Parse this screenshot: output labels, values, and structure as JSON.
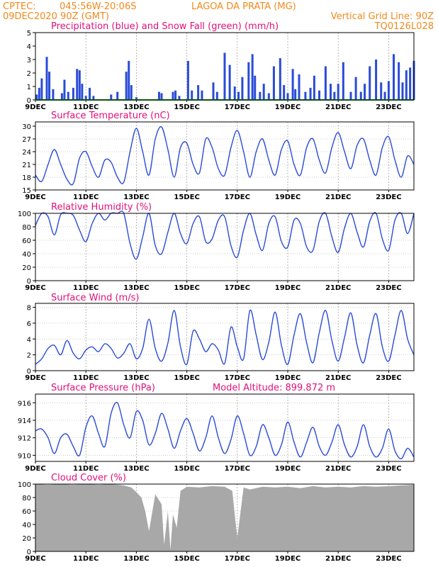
{
  "header": {
    "line1_left": "CPTEC:",
    "line1_coords": "045:56W-20:06S",
    "line1_place": "LAGOA DA PRATA (MG)",
    "line2_left": "09DEC2020 90Z (GMT)",
    "line2_right": "Vertical Grid Line: 90Z",
    "line2_code": "TQ0126L028"
  },
  "colors": {
    "header": "#f08a1c",
    "title": "#e0107a",
    "line": "#2a4bd7",
    "precip": "#2a4bd7",
    "snow": "#22a022",
    "cloud": "#a8a8a8"
  },
  "x_ticks": [
    "9DEC",
    "11DEC",
    "13DEC",
    "15DEC",
    "17DEC",
    "19DEC",
    "21DEC",
    "23DEC"
  ],
  "chart_data": [
    {
      "id": "precip",
      "type": "bar",
      "title": "Precipitation (blue) and Snow Fall (green) (mm/h)",
      "ylim": [
        0,
        5
      ],
      "yticks": [
        0,
        1,
        2,
        3,
        4,
        5
      ],
      "x": [
        9.05,
        9.15,
        9.25,
        9.45,
        9.55,
        9.7,
        10.05,
        10.15,
        10.3,
        10.5,
        10.65,
        10.75,
        10.85,
        11.0,
        11.15,
        11.3,
        12.0,
        12.25,
        12.6,
        12.7,
        12.8,
        13.0,
        13.9,
        14.0,
        14.45,
        14.55,
        14.7,
        15.05,
        15.2,
        15.45,
        15.6,
        16.05,
        16.2,
        16.5,
        16.7,
        16.9,
        17.05,
        17.2,
        17.45,
        17.6,
        17.7,
        17.9,
        18.05,
        18.25,
        18.45,
        18.7,
        18.85,
        19.0,
        19.2,
        19.3,
        19.45,
        19.7,
        19.9,
        20.05,
        20.25,
        20.5,
        20.7,
        20.85,
        21.0,
        21.2,
        21.5,
        21.7,
        21.9,
        22.05,
        22.25,
        22.5,
        22.7,
        22.85,
        23.0,
        23.2,
        23.4,
        23.55,
        23.7,
        23.85,
        24.0
      ],
      "values": [
        0.4,
        0.9,
        1.6,
        3.2,
        2.1,
        0.8,
        0.5,
        1.5,
        0.6,
        0.9,
        2.3,
        2.2,
        1.2,
        0.3,
        0.9,
        0.3,
        0.4,
        0.6,
        2.1,
        2.9,
        1.1,
        0.2,
        0.6,
        0.5,
        0.6,
        0.7,
        0.3,
        2.9,
        0.7,
        1.1,
        0.7,
        1.3,
        0.6,
        3.5,
        2.6,
        1.0,
        0.6,
        1.7,
        2.8,
        3.4,
        1.8,
        0.6,
        1.2,
        0.5,
        2.5,
        3.1,
        1.1,
        0.5,
        2.3,
        0.8,
        1.9,
        0.6,
        0.9,
        1.8,
        0.7,
        2.5,
        1.2,
        0.6,
        1.2,
        2.8,
        0.6,
        1.7,
        0.6,
        1.2,
        2.5,
        3.0,
        1.3,
        0.6,
        1.4,
        3.4,
        2.8,
        1.3,
        2.2,
        2.4,
        2.9
      ],
      "snow": 0,
      "gridlines": "vertical"
    },
    {
      "id": "temperature",
      "type": "line",
      "title": "Surface Temperature (nC)",
      "ylim": [
        15,
        31
      ],
      "yticks": [
        15,
        18,
        21,
        24,
        27,
        30
      ],
      "x": [
        9.0,
        9.25,
        9.5,
        9.75,
        10.0,
        10.25,
        10.5,
        10.75,
        11.0,
        11.25,
        11.5,
        11.75,
        12.0,
        12.25,
        12.5,
        12.75,
        13.0,
        13.25,
        13.5,
        13.75,
        14.0,
        14.25,
        14.5,
        14.75,
        15.0,
        15.25,
        15.5,
        15.75,
        16.0,
        16.25,
        16.5,
        16.75,
        17.0,
        17.25,
        17.5,
        17.75,
        18.0,
        18.25,
        18.5,
        18.75,
        19.0,
        19.25,
        19.5,
        19.75,
        20.0,
        20.25,
        20.5,
        20.75,
        21.0,
        21.25,
        21.5,
        21.75,
        22.0,
        22.25,
        22.5,
        22.75,
        23.0,
        23.25,
        23.5,
        23.75,
        24.0
      ],
      "values": [
        18.5,
        17.0,
        21.0,
        24.5,
        21.0,
        17.5,
        16.5,
        22.5,
        24.0,
        20.5,
        18.0,
        22.0,
        21.5,
        18.0,
        16.8,
        24.0,
        29.5,
        24.0,
        18.5,
        27.0,
        29.8,
        24.5,
        18.0,
        25.0,
        26.0,
        21.0,
        19.0,
        27.0,
        25.0,
        20.0,
        18.5,
        25.0,
        29.0,
        24.0,
        18.0,
        24.0,
        27.0,
        22.0,
        18.5,
        24.5,
        26.5,
        21.0,
        18.5,
        25.0,
        27.0,
        22.0,
        19.0,
        25.0,
        28.5,
        24.0,
        20.0,
        25.5,
        27.0,
        22.0,
        18.5,
        25.0,
        27.5,
        22.0,
        18.0,
        23.0,
        21.0
      ]
    },
    {
      "id": "humidity",
      "type": "line",
      "title": "Relative Humidity (%)",
      "ylim": [
        0,
        100
      ],
      "yticks": [
        0,
        20,
        40,
        60,
        80,
        100
      ],
      "x": [
        9.0,
        9.25,
        9.5,
        9.75,
        10.0,
        10.25,
        10.5,
        10.75,
        11.0,
        11.25,
        11.5,
        11.75,
        12.0,
        12.25,
        12.5,
        12.75,
        13.0,
        13.25,
        13.5,
        13.75,
        14.0,
        14.25,
        14.5,
        14.75,
        15.0,
        15.25,
        15.5,
        15.75,
        16.0,
        16.25,
        16.5,
        16.75,
        17.0,
        17.25,
        17.5,
        17.75,
        18.0,
        18.25,
        18.5,
        18.75,
        19.0,
        19.25,
        19.5,
        19.75,
        20.0,
        20.25,
        20.5,
        20.75,
        21.0,
        21.25,
        21.5,
        21.75,
        22.0,
        22.25,
        22.5,
        22.75,
        23.0,
        23.25,
        23.5,
        23.75,
        24.0
      ],
      "values": [
        82,
        100,
        95,
        68,
        98,
        100,
        97,
        75,
        58,
        85,
        100,
        90,
        100,
        100,
        100,
        55,
        32,
        65,
        100,
        52,
        40,
        72,
        100,
        70,
        55,
        85,
        95,
        58,
        62,
        90,
        95,
        52,
        35,
        75,
        100,
        68,
        45,
        85,
        95,
        58,
        50,
        90,
        85,
        50,
        45,
        88,
        100,
        65,
        42,
        78,
        100,
        72,
        50,
        88,
        100,
        62,
        45,
        90,
        100,
        70,
        100
      ]
    },
    {
      "id": "wind",
      "type": "line",
      "title": "Surface Wind (m/s)",
      "ylim": [
        0,
        8.5
      ],
      "yticks": [
        0,
        2,
        4,
        6,
        8
      ],
      "x": [
        9.0,
        9.25,
        9.5,
        9.75,
        10.0,
        10.25,
        10.5,
        10.75,
        11.0,
        11.25,
        11.5,
        11.75,
        12.0,
        12.25,
        12.5,
        12.75,
        13.0,
        13.25,
        13.5,
        13.75,
        14.0,
        14.25,
        14.5,
        14.75,
        15.0,
        15.25,
        15.5,
        15.75,
        16.0,
        16.25,
        16.5,
        16.75,
        17.0,
        17.25,
        17.5,
        17.75,
        18.0,
        18.25,
        18.5,
        18.75,
        19.0,
        19.25,
        19.5,
        19.75,
        20.0,
        20.25,
        20.5,
        20.75,
        21.0,
        21.25,
        21.5,
        21.75,
        22.0,
        22.25,
        22.5,
        22.75,
        23.0,
        23.25,
        23.5,
        23.75,
        24.0
      ],
      "values": [
        0.8,
        1.5,
        2.8,
        3.2,
        2.0,
        3.8,
        2.2,
        1.5,
        2.6,
        3.0,
        2.4,
        3.4,
        2.8,
        1.6,
        2.2,
        3.4,
        1.5,
        2.8,
        6.5,
        2.8,
        1.2,
        3.5,
        7.6,
        3.0,
        0.8,
        5.0,
        4.0,
        2.4,
        3.4,
        2.6,
        0.9,
        5.5,
        3.0,
        1.5,
        7.6,
        4.5,
        1.4,
        3.6,
        7.4,
        3.2,
        0.8,
        4.5,
        7.2,
        3.5,
        1.0,
        4.8,
        7.6,
        3.8,
        1.2,
        4.2,
        7.3,
        3.2,
        1.0,
        4.5,
        7.2,
        3.0,
        1.2,
        4.5,
        7.6,
        4.0,
        2.0
      ]
    },
    {
      "id": "pressure",
      "type": "line",
      "title": "Surface Pressure (hPa)",
      "annotation": "Model Altitude: 899.872 m",
      "ylim": [
        909.3,
        917
      ],
      "yticks": [
        910,
        912,
        914,
        916
      ],
      "x": [
        9.0,
        9.25,
        9.5,
        9.75,
        10.0,
        10.25,
        10.5,
        10.75,
        11.0,
        11.25,
        11.5,
        11.75,
        12.0,
        12.25,
        12.5,
        12.75,
        13.0,
        13.25,
        13.5,
        13.75,
        14.0,
        14.25,
        14.5,
        14.75,
        15.0,
        15.25,
        15.5,
        15.75,
        16.0,
        16.25,
        16.5,
        16.75,
        17.0,
        17.25,
        17.5,
        17.75,
        18.0,
        18.25,
        18.5,
        18.75,
        19.0,
        19.25,
        19.5,
        19.75,
        20.0,
        20.25,
        20.5,
        20.75,
        21.0,
        21.25,
        21.5,
        21.75,
        22.0,
        22.25,
        22.5,
        22.75,
        23.0,
        23.25,
        23.5,
        23.75,
        24.0
      ],
      "values": [
        912.8,
        913.0,
        912.0,
        910.2,
        912.0,
        912.4,
        911.0,
        910.0,
        913.2,
        914.5,
        912.5,
        911.0,
        914.8,
        916.0,
        913.5,
        912.0,
        915.0,
        914.0,
        911.2,
        912.5,
        914.8,
        913.0,
        910.8,
        912.8,
        914.2,
        912.5,
        910.5,
        912.0,
        914.5,
        912.0,
        910.2,
        911.8,
        914.5,
        912.5,
        910.0,
        911.0,
        913.5,
        912.0,
        910.0,
        911.2,
        913.8,
        911.5,
        909.8,
        911.5,
        913.2,
        911.0,
        910.0,
        911.5,
        913.5,
        911.2,
        909.8,
        911.0,
        913.5,
        911.0,
        909.8,
        910.8,
        913.0,
        910.5,
        909.6,
        910.8,
        909.8
      ]
    },
    {
      "id": "cloud",
      "type": "area",
      "title": "Cloud Cover (%)",
      "ylim": [
        0,
        100
      ],
      "yticks": [
        0,
        20,
        40,
        60,
        80,
        100
      ],
      "x": [
        9.0,
        9.5,
        10.0,
        10.5,
        11.0,
        11.5,
        12.0,
        12.5,
        12.8,
        13.0,
        13.2,
        13.35,
        13.5,
        13.75,
        14.0,
        14.1,
        14.25,
        14.35,
        14.45,
        14.6,
        14.75,
        15.0,
        15.5,
        16.0,
        16.5,
        16.8,
        17.0,
        17.25,
        17.5,
        18.0,
        18.5,
        19.0,
        19.5,
        20.0,
        20.5,
        21.0,
        21.5,
        22.0,
        22.5,
        23.0,
        23.5,
        24.0
      ],
      "values": [
        100,
        99,
        100,
        99,
        100,
        99,
        100,
        98,
        95,
        88,
        80,
        60,
        30,
        85,
        70,
        10,
        60,
        2,
        55,
        35,
        90,
        96,
        95,
        97,
        96,
        90,
        20,
        95,
        92,
        96,
        95,
        96,
        94,
        97,
        95,
        96,
        95,
        97,
        96,
        97,
        98,
        99
      ]
    }
  ]
}
